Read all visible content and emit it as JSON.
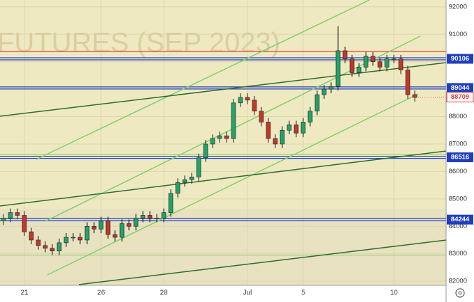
{
  "chart_data": {
    "type": "candlestick",
    "watermark": "FUTURES (SEP 2023)",
    "categories": [
      null,
      null,
      null,
      "21",
      null,
      null,
      null,
      null,
      null,
      null,
      null,
      null,
      null,
      null,
      "26",
      null,
      null,
      null,
      null,
      null,
      null,
      null,
      null,
      "28",
      null,
      null,
      null,
      null,
      null,
      null,
      null,
      null,
      null,
      null,
      null,
      "Jul",
      null,
      null,
      null,
      null,
      null,
      null,
      null,
      "5",
      null,
      null,
      null,
      null,
      null,
      null,
      null,
      null,
      null,
      null,
      null,
      null,
      "10",
      null,
      null,
      null
    ],
    "open": [
      84200,
      84300,
      84500,
      84400,
      83800,
      83500,
      83300,
      83200,
      83100,
      83400,
      83600,
      83600,
      83500,
      84000,
      83900,
      84200,
      83700,
      83600,
      84100,
      84000,
      84300,
      84400,
      84300,
      84300,
      84500,
      85200,
      85600,
      85700,
      85800,
      86500,
      87000,
      87200,
      87300,
      87200,
      88500,
      88700,
      88600,
      88200,
      87800,
      87200,
      87000,
      87500,
      87700,
      87400,
      87800,
      88200,
      88800,
      89000,
      89100,
      90400,
      90100,
      89600,
      89800,
      90200,
      90000,
      89800,
      90100,
      90100,
      89700,
      88800
    ],
    "high": [
      84450,
      84650,
      84650,
      84550,
      83950,
      83650,
      83450,
      83350,
      83550,
      83750,
      83750,
      83750,
      84150,
      84150,
      84350,
      84350,
      83850,
      84250,
      84250,
      84450,
      84550,
      84550,
      84450,
      84650,
      85350,
      85750,
      85850,
      85950,
      86650,
      87150,
      87350,
      87450,
      87450,
      88650,
      88850,
      88850,
      88750,
      88350,
      87950,
      87350,
      87650,
      87850,
      87850,
      87950,
      88350,
      88950,
      89150,
      89250,
      91300,
      90550,
      90250,
      89950,
      90350,
      90350,
      90150,
      90250,
      90250,
      90250,
      89850,
      88950
    ],
    "low": [
      84050,
      84150,
      84250,
      83650,
      83350,
      83150,
      83050,
      82950,
      82950,
      83250,
      83450,
      83350,
      83350,
      83750,
      83750,
      83550,
      83450,
      83450,
      83850,
      83850,
      84150,
      84150,
      84150,
      84150,
      84350,
      85050,
      85450,
      85550,
      85650,
      86350,
      86850,
      87050,
      87050,
      87050,
      88350,
      88450,
      88050,
      87650,
      87050,
      86850,
      86850,
      87350,
      87250,
      87250,
      87650,
      88050,
      88650,
      88850,
      88950,
      89950,
      89450,
      89450,
      89650,
      89850,
      89650,
      89650,
      89950,
      89550,
      88650,
      88550
    ],
    "close": [
      84300,
      84500,
      84400,
      83800,
      83500,
      83300,
      83200,
      83100,
      83400,
      83600,
      83600,
      83500,
      84000,
      83900,
      84200,
      83700,
      83600,
      84100,
      84000,
      84300,
      84400,
      84300,
      84300,
      84500,
      85200,
      85600,
      85700,
      85800,
      86500,
      87000,
      87200,
      87300,
      87200,
      88500,
      88700,
      88600,
      88200,
      87800,
      87200,
      87000,
      87500,
      87700,
      87400,
      87800,
      88200,
      88800,
      89000,
      89100,
      90400,
      90100,
      89600,
      89800,
      90200,
      90000,
      89800,
      90100,
      90100,
      89700,
      88800,
      88700
    ],
    "up_color": "#26a269",
    "down_color": "#c0392b",
    "ylim": [
      81850,
      92250
    ],
    "yticks": [
      82000,
      83000,
      84000,
      85000,
      86000,
      87000,
      88000,
      89000,
      90000,
      91000,
      92000
    ],
    "grid": true,
    "price_levels": [
      90106,
      89044,
      86516,
      84244
    ],
    "price_level_color": "#1f3fbf",
    "last_price": 88709,
    "last_price_color": "#e0413a",
    "lines": [
      {
        "value": 90380,
        "color": "#e0413a"
      },
      {
        "value": 86620,
        "color": "#7fd06a"
      },
      {
        "value": 82950,
        "color": "#9ed37a"
      }
    ]
  }
}
